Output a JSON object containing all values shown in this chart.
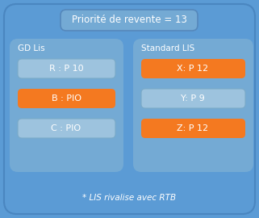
{
  "fig_w": 3.21,
  "fig_h": 2.7,
  "dpi": 100,
  "bg_color": "#5b9bd5",
  "outer_box_color": "#5b9bd5",
  "outer_box_edge": "#4a86c0",
  "inner_box_color": "#74aad4",
  "title_box_color": "#74aad4",
  "title_box_edge": "#5588bb",
  "orange_color": "#f47920",
  "white_color": "#ffffff",
  "light_blue_item": "#9dc3de",
  "light_blue_item_edge": "#7aaac8",
  "title_text": "Priorité de revente = 13",
  "gd_label": "GD Lis",
  "std_label": "Standard LIS",
  "footer_text": "* LIS rivalise avec RTB",
  "gd_items": [
    {
      "label": "R : P 10",
      "orange": false
    },
    {
      "label": "B : PIO",
      "orange": true
    },
    {
      "label": "C : PIO",
      "orange": false
    }
  ],
  "std_items": [
    {
      "label": "X: P 12",
      "orange": true
    },
    {
      "label": "Y: P 9",
      "orange": false
    },
    {
      "label": "Z: P 12",
      "orange": true
    }
  ],
  "title_fontsize": 8.5,
  "label_fontsize": 7.5,
  "item_fontsize": 8,
  "footer_fontsize": 7.5
}
